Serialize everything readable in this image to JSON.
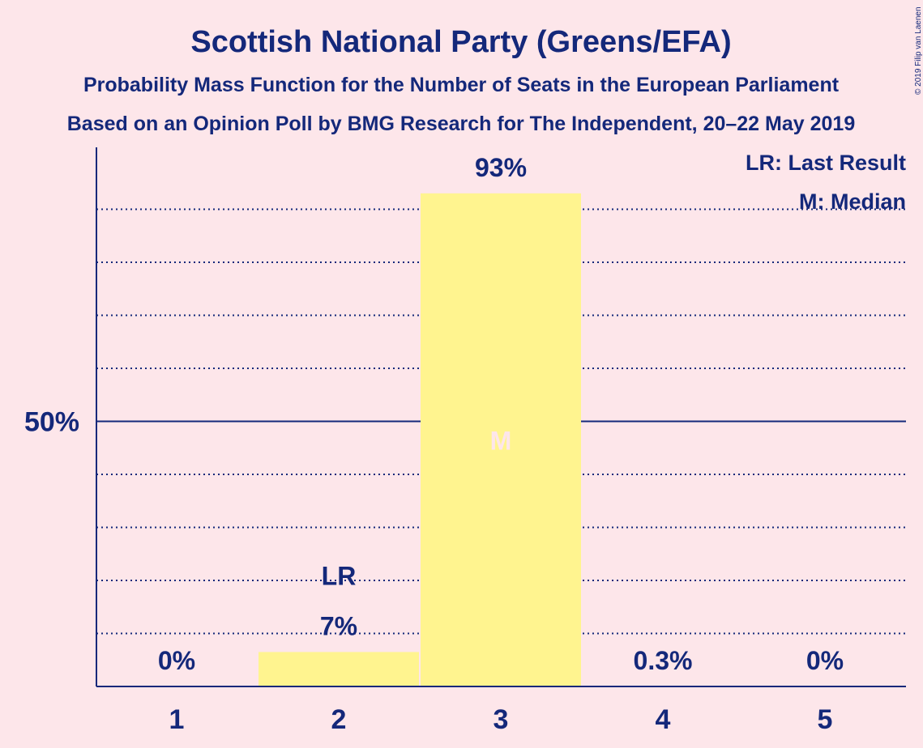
{
  "copyright": "© 2019 Filip van Laenen",
  "colors": {
    "background": "#fde6ea",
    "bar": "#fff48f",
    "text": "#14287a"
  },
  "legend": {
    "lr": "LR: Last Result",
    "m": "M: Median"
  },
  "chart_data": {
    "type": "bar",
    "title": "Scottish National Party (Greens/EFA)",
    "subtitle": "Probability Mass Function for the Number of Seats in the European Parliament",
    "subtitle2": "Based on an Opinion Poll by BMG Research for The Independent, 20–22 May 2019",
    "categories": [
      "1",
      "2",
      "3",
      "4",
      "5"
    ],
    "values": [
      0,
      6.5,
      93,
      0.3,
      0
    ],
    "value_labels": [
      "0%",
      "7%",
      "93%",
      "0.3%",
      "0%"
    ],
    "ylim": [
      0,
      100
    ],
    "yticks": [
      50
    ],
    "ytick_labels": [
      "50%"
    ],
    "grid_dotted": [
      10,
      20,
      30,
      40,
      60,
      70,
      80,
      90
    ],
    "last_result_category": "2",
    "last_result_marker": "LR",
    "median_category": "3",
    "median_marker": "M"
  }
}
